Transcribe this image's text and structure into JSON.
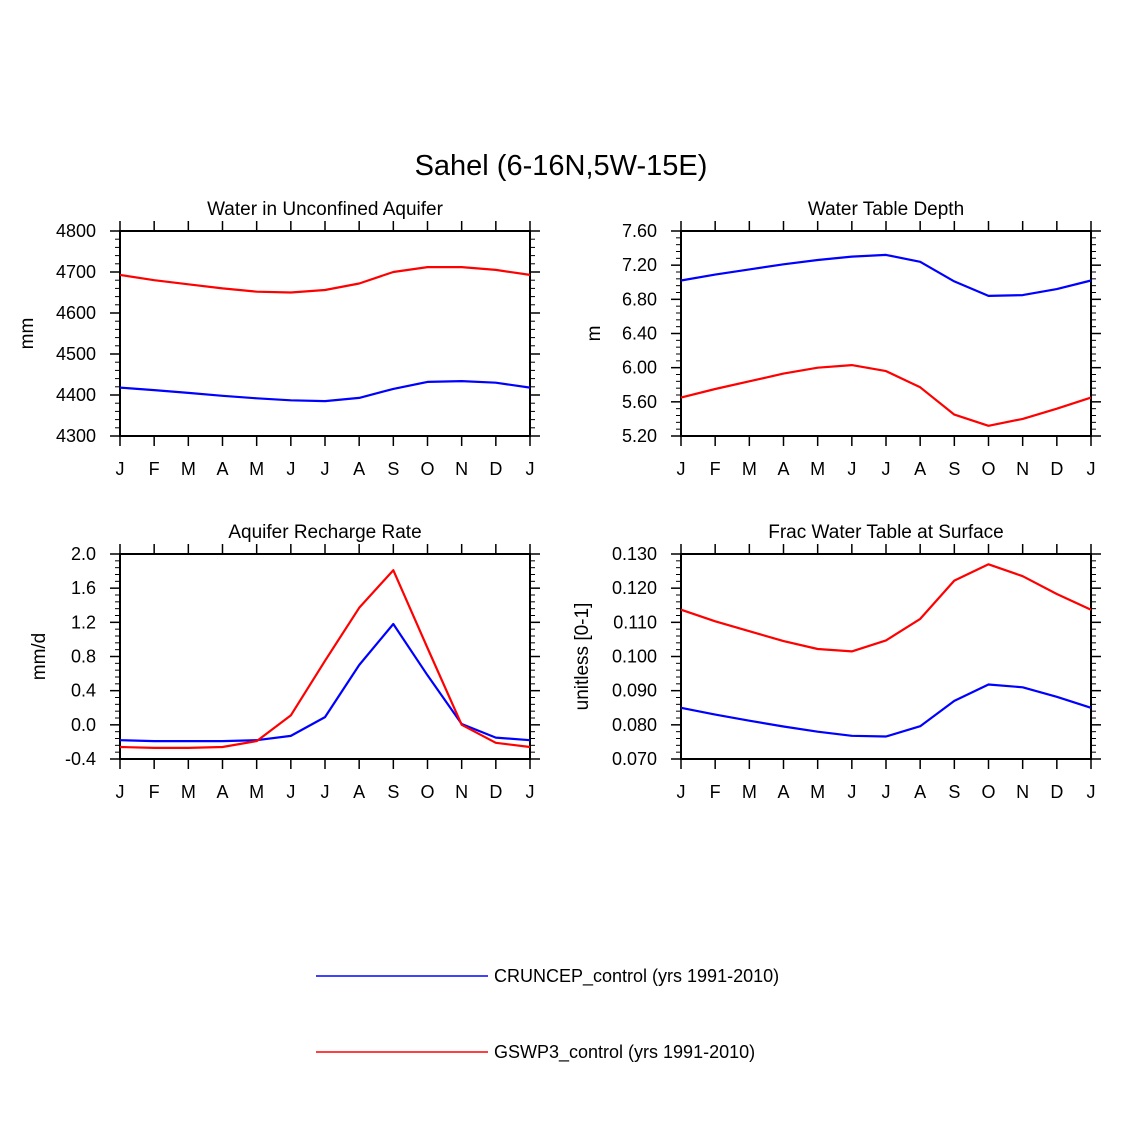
{
  "figure_title": "Sahel (6-16N,5W-15E)",
  "legend": [
    {
      "label": "CRUNCEP_control (yrs 1991-2010)",
      "color": "#0000ff"
    },
    {
      "label": "GSWP3_control (yrs 1991-2010)",
      "color": "#ff0000"
    }
  ],
  "chart_data": [
    {
      "type": "line",
      "title": "Water in Unconfined Aquifer",
      "xlabel": "",
      "ylabel": "mm",
      "categories": [
        "J",
        "F",
        "M",
        "A",
        "M",
        "J",
        "J",
        "A",
        "S",
        "O",
        "N",
        "D",
        "J"
      ],
      "ylim": [
        4300,
        4800
      ],
      "yticks": [
        "4300",
        "4400",
        "4500",
        "4600",
        "4700",
        "4800"
      ],
      "series": [
        {
          "name": "CRUNCEP_control (yrs 1991-2010)",
          "color": "#0000ff",
          "values": [
            4418,
            4412,
            4405,
            4398,
            4392,
            4387,
            4385,
            4393,
            4415,
            4432,
            4434,
            4430,
            4418
          ]
        },
        {
          "name": "GSWP3_control (yrs 1991-2010)",
          "color": "#ff0000",
          "values": [
            4693,
            4680,
            4670,
            4660,
            4652,
            4650,
            4656,
            4672,
            4700,
            4712,
            4712,
            4705,
            4693
          ]
        }
      ]
    },
    {
      "type": "line",
      "title": "Water Table Depth",
      "xlabel": "",
      "ylabel": "m",
      "categories": [
        "J",
        "F",
        "M",
        "A",
        "M",
        "J",
        "J",
        "A",
        "S",
        "O",
        "N",
        "D",
        "J"
      ],
      "ylim": [
        5.2,
        7.6
      ],
      "yticks": [
        "5.20",
        "5.60",
        "6.00",
        "6.40",
        "6.80",
        "7.20",
        "7.60"
      ],
      "series": [
        {
          "name": "CRUNCEP_control (yrs 1991-2010)",
          "color": "#0000ff",
          "values": [
            7.02,
            7.09,
            7.15,
            7.21,
            7.26,
            7.3,
            7.32,
            7.24,
            7.01,
            6.84,
            6.85,
            6.92,
            7.02
          ]
        },
        {
          "name": "GSWP3_control (yrs 1991-2010)",
          "color": "#ff0000",
          "values": [
            5.65,
            5.75,
            5.84,
            5.93,
            6.0,
            6.03,
            5.96,
            5.77,
            5.45,
            5.32,
            5.4,
            5.52,
            5.65
          ]
        }
      ]
    },
    {
      "type": "line",
      "title": "Aquifer Recharge Rate",
      "xlabel": "",
      "ylabel": "mm/d",
      "categories": [
        "J",
        "F",
        "M",
        "A",
        "M",
        "J",
        "J",
        "A",
        "S",
        "O",
        "N",
        "D",
        "J"
      ],
      "ylim": [
        -0.4,
        2.0
      ],
      "yticks": [
        "-0.4",
        "0.0",
        "0.4",
        "0.8",
        "1.2",
        "1.6",
        "2.0"
      ],
      "series": [
        {
          "name": "CRUNCEP_control (yrs 1991-2010)",
          "color": "#0000ff",
          "values": [
            -0.18,
            -0.19,
            -0.19,
            -0.19,
            -0.18,
            -0.13,
            0.09,
            0.7,
            1.18,
            0.58,
            0.01,
            -0.15,
            -0.18
          ]
        },
        {
          "name": "GSWP3_control (yrs 1991-2010)",
          "color": "#ff0000",
          "values": [
            -0.26,
            -0.27,
            -0.27,
            -0.26,
            -0.19,
            0.11,
            0.75,
            1.37,
            1.81,
            0.9,
            0.0,
            -0.21,
            -0.26
          ]
        }
      ]
    },
    {
      "type": "line",
      "title": "Frac Water Table at Surface",
      "xlabel": "",
      "ylabel": "unitless [0-1]",
      "categories": [
        "J",
        "F",
        "M",
        "A",
        "M",
        "J",
        "J",
        "A",
        "S",
        "O",
        "N",
        "D",
        "J"
      ],
      "ylim": [
        0.07,
        0.13
      ],
      "yticks": [
        "0.070",
        "0.080",
        "0.090",
        "0.100",
        "0.110",
        "0.120",
        "0.130"
      ],
      "series": [
        {
          "name": "CRUNCEP_control (yrs 1991-2010)",
          "color": "#0000ff",
          "values": [
            0.085,
            0.083,
            0.0812,
            0.0795,
            0.078,
            0.0768,
            0.0766,
            0.0796,
            0.087,
            0.0918,
            0.091,
            0.0882,
            0.085
          ]
        },
        {
          "name": "GSWP3_control (yrs 1991-2010)",
          "color": "#ff0000",
          "values": [
            0.1137,
            0.1103,
            0.1074,
            0.1045,
            0.1022,
            0.1015,
            0.1047,
            0.111,
            0.1222,
            0.127,
            0.1235,
            0.1183,
            0.1137
          ]
        }
      ]
    }
  ]
}
